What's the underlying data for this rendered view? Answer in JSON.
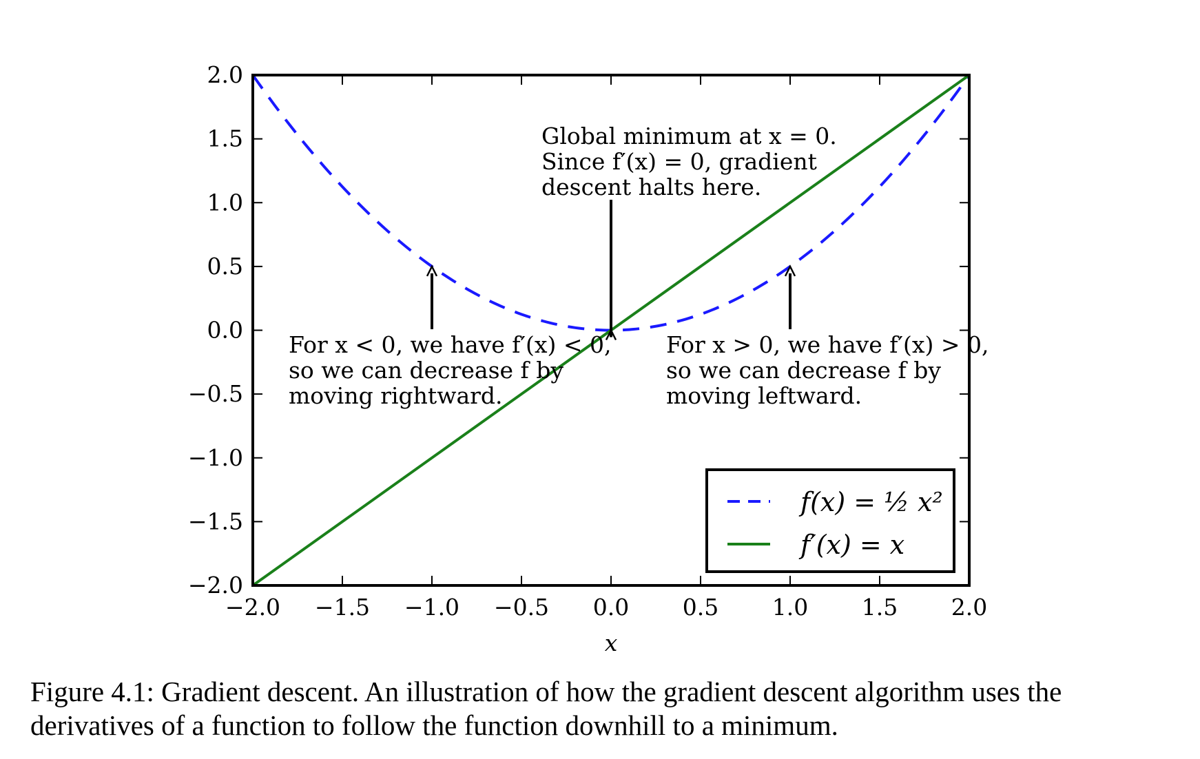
{
  "chart_data": {
    "type": "line",
    "xlabel": "x",
    "ylabel": "",
    "xlim": [
      -2.0,
      2.0
    ],
    "ylim": [
      -2.0,
      2.0
    ],
    "xticks": [
      "−2.0",
      "−1.5",
      "−1.0",
      "−0.5",
      "0.0",
      "0.5",
      "1.0",
      "1.5",
      "2.0"
    ],
    "yticks": [
      "2.0",
      "1.5",
      "1.0",
      "0.5",
      "0.0",
      "−0.5",
      "−1.0",
      "−1.5",
      "−2.0"
    ],
    "grid": false,
    "legend_position": "lower-right",
    "series": [
      {
        "name": "f(x) = ½ x²",
        "style": "dashed",
        "color": "#1a1aff",
        "x": [
          -2.0,
          -1.75,
          -1.5,
          -1.25,
          -1.0,
          -0.75,
          -0.5,
          -0.25,
          0.0,
          0.25,
          0.5,
          0.75,
          1.0,
          1.25,
          1.5,
          1.75,
          2.0
        ],
        "y": [
          2.0,
          1.53125,
          1.125,
          0.78125,
          0.5,
          0.28125,
          0.125,
          0.03125,
          0.0,
          0.03125,
          0.125,
          0.28125,
          0.5,
          0.78125,
          1.125,
          1.53125,
          2.0
        ]
      },
      {
        "name": "f′(x) = x",
        "style": "solid",
        "color": "#1a801a",
        "x": [
          -2.0,
          2.0
        ],
        "y": [
          -2.0,
          2.0
        ]
      }
    ],
    "annotations": [
      {
        "lines": [
          "Global minimum at x = 0.",
          "Since f′(x) = 0, gradient",
          "descent halts here."
        ],
        "arrow_to": [
          0.0,
          0.0
        ]
      },
      {
        "lines": [
          "For x < 0, we have f′(x) < 0,",
          "so we can decrease f by",
          "moving rightward."
        ],
        "arrow_to": [
          -1.0,
          0.5
        ]
      },
      {
        "lines": [
          "For x > 0, we have f′(x) > 0,",
          "so we can decrease f by",
          "moving leftward."
        ],
        "arrow_to": [
          1.0,
          0.5
        ]
      }
    ]
  },
  "caption": "Figure 4.1: Gradient descent. An illustration of how the gradient descent algorithm uses the derivatives of a function to follow the function downhill to a minimum."
}
